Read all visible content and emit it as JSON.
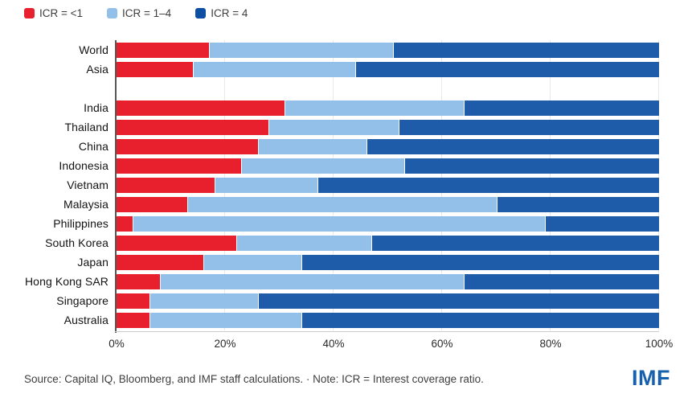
{
  "legend": [
    {
      "label": "ICR = <1",
      "color": "#e8202d"
    },
    {
      "label": "ICR = 1–4",
      "color": "#92c0e8"
    },
    {
      "label": "ICR = 4",
      "color": "#0d4fa3"
    }
  ],
  "chart_data": {
    "type": "bar",
    "orientation": "horizontal",
    "stacked": true,
    "unit": "percent",
    "xlim": [
      0,
      100
    ],
    "x_ticks": [
      "0%",
      "20%",
      "40%",
      "60%",
      "80%",
      "100%"
    ],
    "grid": "vertical",
    "legend_position": "top-left",
    "categories": [
      "World",
      "Asia",
      "India",
      "Thailand",
      "China",
      "Indonesia",
      "Vietnam",
      "Malaysia",
      "Philippines",
      "South Korea",
      "Japan",
      "Hong Kong SAR",
      "Singapore",
      "Australia"
    ],
    "separator_after_index": 1,
    "series": [
      {
        "name": "ICR = <1",
        "color": "#e8202d",
        "values": [
          17,
          14,
          31,
          28,
          26,
          23,
          18,
          13,
          3,
          22,
          16,
          8,
          6,
          6
        ]
      },
      {
        "name": "ICR = 1–4",
        "color": "#92c0e8",
        "values": [
          34,
          30,
          33,
          24,
          20,
          30,
          19,
          57,
          76,
          25,
          18,
          56,
          20,
          28
        ]
      },
      {
        "name": "ICR = 4",
        "color": "#1e5ca9",
        "values": [
          49,
          56,
          36,
          48,
          54,
          47,
          63,
          30,
          21,
          53,
          66,
          36,
          74,
          66
        ]
      }
    ]
  },
  "footer": {
    "source_note": "Source: Capital IQ, Bloomberg, and IMF staff calculations. · Note: ICR = Interest coverage ratio.",
    "logo_text": "IMF"
  }
}
